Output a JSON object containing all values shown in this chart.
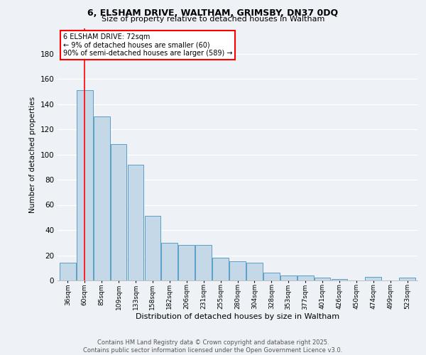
{
  "title1": "6, ELSHAM DRIVE, WALTHAM, GRIMSBY, DN37 0DQ",
  "title2": "Size of property relative to detached houses in Waltham",
  "xlabel": "Distribution of detached houses by size in Waltham",
  "ylabel": "Number of detached properties",
  "bar_values": [
    14,
    151,
    130,
    108,
    92,
    51,
    30,
    28,
    28,
    18,
    15,
    14,
    6,
    4,
    4,
    2,
    1,
    0,
    3,
    0,
    2
  ],
  "categories": [
    "36sqm",
    "60sqm",
    "85sqm",
    "109sqm",
    "133sqm",
    "158sqm",
    "182sqm",
    "206sqm",
    "231sqm",
    "255sqm",
    "280sqm",
    "304sqm",
    "328sqm",
    "353sqm",
    "377sqm",
    "401sqm",
    "426sqm",
    "450sqm",
    "474sqm",
    "499sqm",
    "523sqm"
  ],
  "bar_color": "#c5d8e8",
  "bar_edge_color": "#5a9fc8",
  "red_line_x": 1,
  "annotation_text": "6 ELSHAM DRIVE: 72sqm\n← 9% of detached houses are smaller (60)\n90% of semi-detached houses are larger (589) →",
  "annotation_box_color": "white",
  "annotation_box_edge": "red",
  "ylim": [
    0,
    200
  ],
  "yticks": [
    0,
    20,
    40,
    60,
    80,
    100,
    120,
    140,
    160,
    180
  ],
  "background_color": "#eef2f7",
  "grid_color": "white",
  "footer": "Contains HM Land Registry data © Crown copyright and database right 2025.\nContains public sector information licensed under the Open Government Licence v3.0."
}
